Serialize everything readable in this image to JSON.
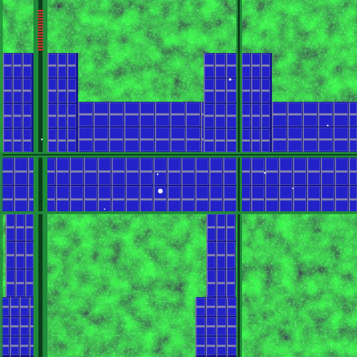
{
  "image": {
    "subject": "silicon-die-micrograph",
    "palette": {
      "logic_dark": "#0a4a1c",
      "logic_mid": "#17a33c",
      "logic_bright": "#3fe66a",
      "cell_blue": "#2222c8",
      "cell_blue_dark": "#15158a",
      "cell_outline": "#6a6ad8",
      "metal_gray": "#9a9aa6",
      "bus_green": "#1f8a3a",
      "bus_dark": "#0b3d1a",
      "pad_red": "#c0392b",
      "highlight": "#ffffff"
    }
  }
}
